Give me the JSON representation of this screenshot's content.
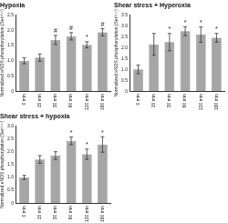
{
  "chart_data": [
    {
      "type": "bar",
      "title": "Hypoxia",
      "y_label": "Normalized eNOS phosphorylation (Ser¹¹⁷⁷)",
      "categories": [
        "0 min",
        "15 min",
        "30 min",
        "60 min",
        "120 min",
        "180 min"
      ],
      "values": [
        1.0,
        1.1,
        1.68,
        1.8,
        1.52,
        1.93
      ],
      "errors": [
        0.1,
        0.12,
        0.15,
        0.12,
        0.1,
        0.12
      ],
      "annotations": [
        null,
        null,
        "#",
        "#",
        "*",
        "#"
      ],
      "color": "#a6a6a6",
      "grid": false,
      "ylim": [
        0,
        2.5
      ],
      "yticks": [
        0,
        0.5,
        {
          "value": 1,
          "label": "1.0"
        },
        1.5,
        {
          "value": 2,
          "label": "2.0"
        },
        2.5
      ]
    },
    {
      "type": "bar",
      "title": "Shear stress + Hyperoxia",
      "y_label": "Normalized eNOS phosphorylation (Ser¹¹⁷⁷)",
      "categories": [
        "0 min",
        "15 min",
        "30 min",
        "60 min",
        "120 min",
        "180 min"
      ],
      "values": [
        1.0,
        2.15,
        2.25,
        2.75,
        2.6,
        2.45
      ],
      "errors": [
        0.2,
        0.5,
        0.4,
        0.2,
        0.35,
        0.2
      ],
      "annotations": [
        null,
        null,
        "*",
        "*",
        "*",
        "*"
      ],
      "color": "#a6a6a6",
      "grid": false,
      "ylim": [
        0,
        3.5
      ],
      "yticks": [
        0,
        0.5,
        {
          "value": 1,
          "label": "1.0"
        },
        1.5,
        {
          "value": 2,
          "label": "2.0"
        },
        2.5,
        {
          "value": 3,
          "label": "3.0"
        },
        3.5
      ]
    },
    {
      "type": "bar",
      "title": "Shear stress + hypoxia",
      "y_label": "Normalized eNOS phosphorylation (Ser¹¹⁷⁷)",
      "categories": [
        "0 min",
        "15 min",
        "30 min",
        "60 min",
        "120 min",
        "180 min"
      ],
      "values": [
        1.0,
        1.7,
        1.85,
        2.42,
        1.9,
        2.28
      ],
      "errors": [
        0.08,
        0.15,
        0.15,
        0.15,
        0.2,
        0.3
      ],
      "annotations": [
        null,
        null,
        null,
        "*",
        "*",
        "*"
      ],
      "color": "#a6a6a6",
      "grid": false,
      "ylim": [
        0,
        3.0
      ],
      "yticks": [
        0,
        0.5,
        {
          "value": 1,
          "label": "1.0"
        },
        1.5,
        {
          "value": 2,
          "label": "2.0"
        },
        2.5,
        {
          "value": 3,
          "label": "3.0"
        }
      ]
    }
  ]
}
